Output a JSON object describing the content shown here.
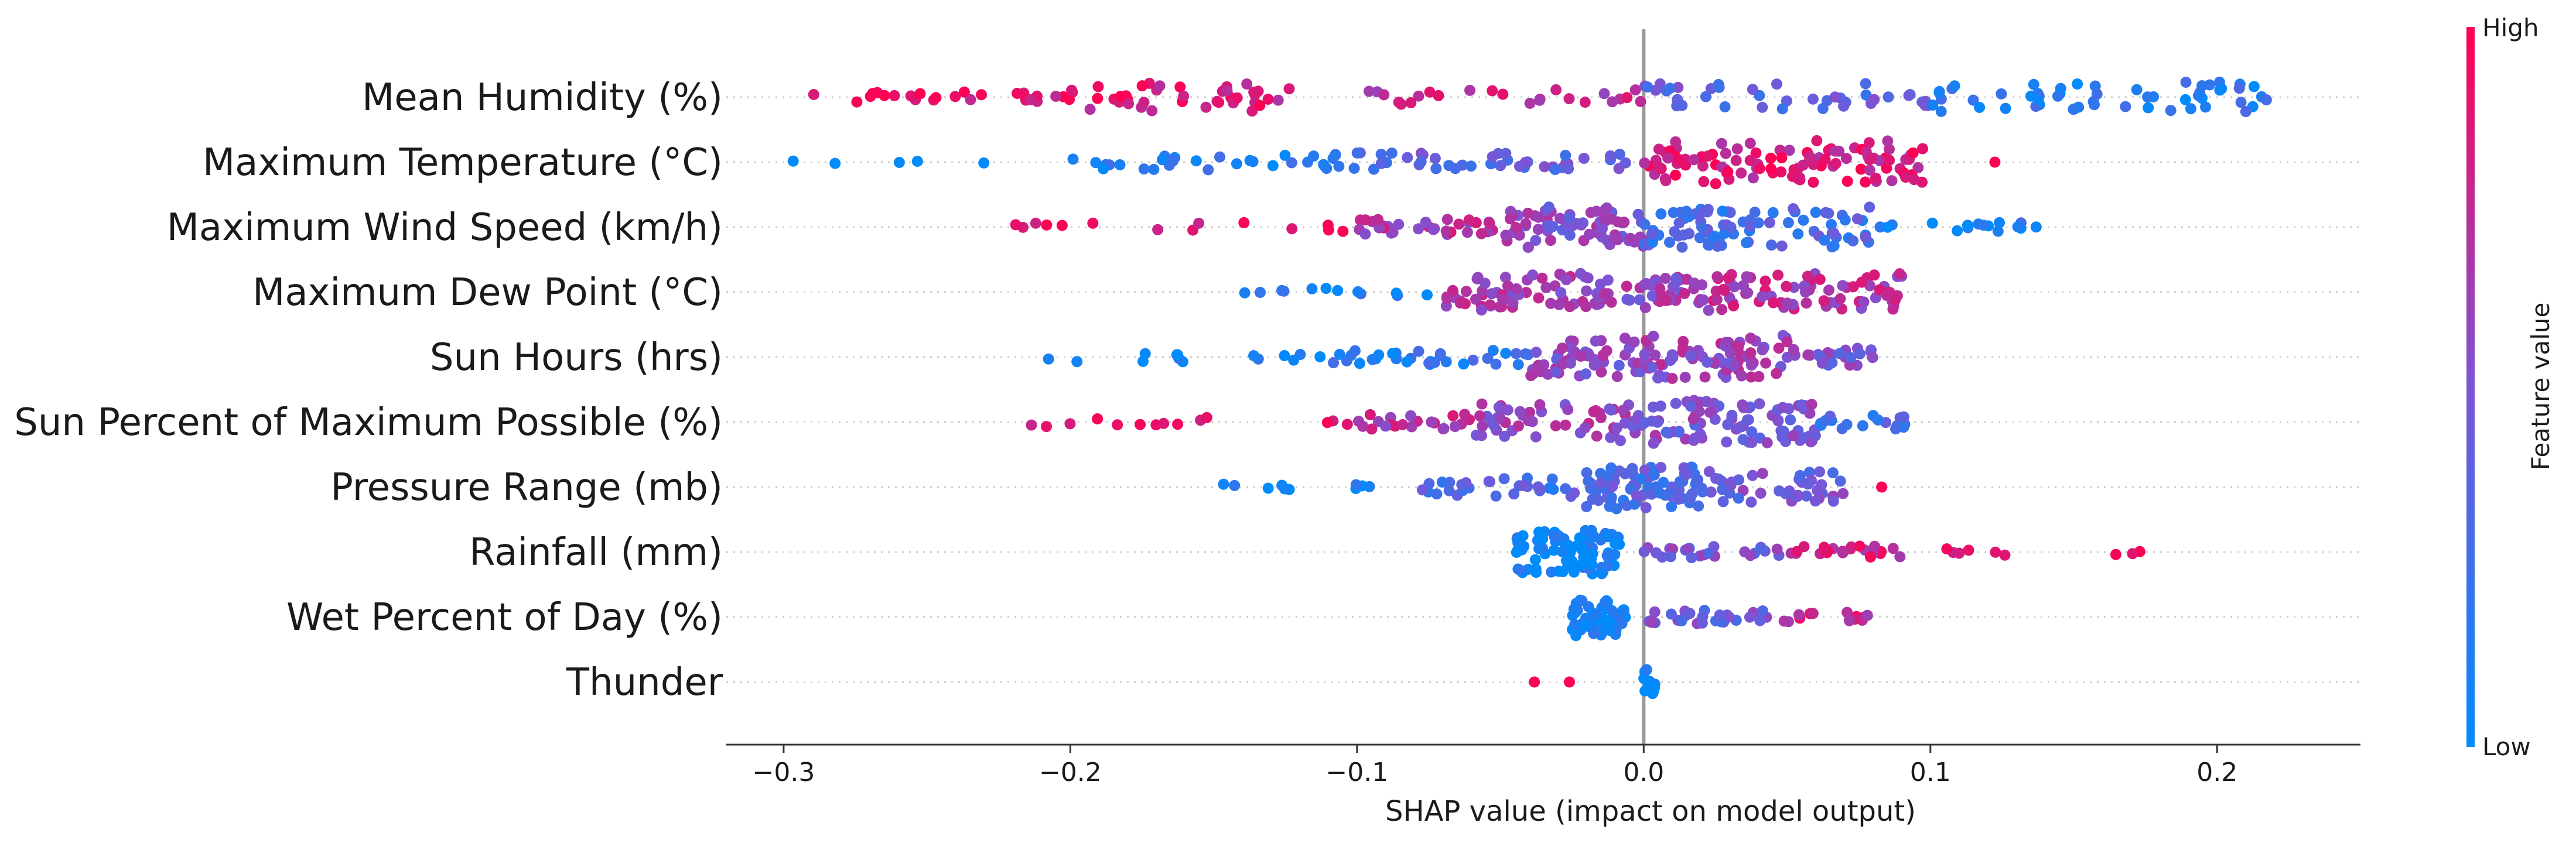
{
  "chart_data": {
    "type": "scatter",
    "subtype": "shap-beeswarm-summary",
    "xlabel": "SHAP value (impact on model output)",
    "xlim": [
      -0.32,
      0.25
    ],
    "xticks": [
      -0.3,
      -0.2,
      -0.1,
      0.0,
      0.1,
      0.2
    ],
    "xtick_labels": [
      "−0.3",
      "−0.2",
      "−0.1",
      "0.0",
      "0.1",
      "0.2"
    ],
    "colorbar": {
      "title": "Feature value",
      "high_label": "High",
      "low_label": "Low",
      "low_color": "#008bfb",
      "high_color": "#ff0052"
    },
    "features": [
      {
        "name": "Mean Humidity (%)",
        "clusters": [
          {
            "min": -0.29,
            "max": -0.2,
            "n": 26,
            "fv": 0.92,
            "spread": 0.8
          },
          {
            "min": -0.2,
            "max": -0.12,
            "n": 40,
            "fv": 0.85,
            "spread": 1.8
          },
          {
            "min": -0.12,
            "max": 0.0,
            "n": 24,
            "fv": 0.75,
            "spread": 1.0
          },
          {
            "min": 0.0,
            "max": 0.1,
            "n": 40,
            "fv": 0.38,
            "spread": 1.8
          },
          {
            "min": 0.1,
            "max": 0.22,
            "n": 55,
            "fv": 0.15,
            "spread": 2.0
          }
        ]
      },
      {
        "name": "Maximum Temperature (°C)",
        "clusters": [
          {
            "min": -0.31,
            "max": -0.23,
            "n": 5,
            "fv": 0.05,
            "spread": 0.2
          },
          {
            "min": -0.2,
            "max": -0.1,
            "n": 32,
            "fv": 0.1,
            "spread": 1.0
          },
          {
            "min": -0.1,
            "max": 0.0,
            "n": 42,
            "fv": 0.4,
            "spread": 1.2
          },
          {
            "min": 0.0,
            "max": 0.1,
            "n": 110,
            "fv": 0.85,
            "spread": 2.8
          },
          {
            "min": 0.12,
            "max": 0.125,
            "n": 1,
            "fv": 0.95,
            "spread": 0.0
          }
        ]
      },
      {
        "name": "Maximum Wind Speed (km/h)",
        "clusters": [
          {
            "min": -0.22,
            "max": -0.1,
            "n": 14,
            "fv": 0.93,
            "spread": 0.6
          },
          {
            "min": -0.1,
            "max": -0.05,
            "n": 32,
            "fv": 0.7,
            "spread": 1.0
          },
          {
            "min": -0.05,
            "max": 0.0,
            "n": 70,
            "fv": 0.55,
            "spread": 2.6
          },
          {
            "min": 0.0,
            "max": 0.08,
            "n": 85,
            "fv": 0.3,
            "spread": 2.6
          },
          {
            "min": 0.08,
            "max": 0.14,
            "n": 16,
            "fv": 0.1,
            "spread": 0.6
          }
        ]
      },
      {
        "name": "Maximum Dew Point (°C)",
        "clusters": [
          {
            "min": -0.14,
            "max": -0.07,
            "n": 12,
            "fv": 0.08,
            "spread": 0.5
          },
          {
            "min": -0.07,
            "max": -0.02,
            "n": 55,
            "fv": 0.65,
            "spread": 2.4
          },
          {
            "min": -0.02,
            "max": 0.02,
            "n": 50,
            "fv": 0.6,
            "spread": 2.0
          },
          {
            "min": 0.02,
            "max": 0.09,
            "n": 80,
            "fv": 0.7,
            "spread": 2.4
          }
        ]
      },
      {
        "name": "Sun Hours (hrs)",
        "clusters": [
          {
            "min": -0.215,
            "max": -0.11,
            "n": 14,
            "fv": 0.08,
            "spread": 0.6
          },
          {
            "min": -0.11,
            "max": -0.04,
            "n": 32,
            "fv": 0.15,
            "spread": 1.0
          },
          {
            "min": -0.04,
            "max": 0.0,
            "n": 50,
            "fv": 0.55,
            "spread": 2.6
          },
          {
            "min": 0.0,
            "max": 0.05,
            "n": 70,
            "fv": 0.6,
            "spread": 2.8
          },
          {
            "min": 0.05,
            "max": 0.08,
            "n": 24,
            "fv": 0.5,
            "spread": 1.4
          }
        ]
      },
      {
        "name": "Sun Percent of Maximum Possible (%)",
        "clusters": [
          {
            "min": -0.215,
            "max": -0.1,
            "n": 14,
            "fv": 0.92,
            "spread": 0.6
          },
          {
            "min": -0.1,
            "max": -0.06,
            "n": 22,
            "fv": 0.7,
            "spread": 1.0
          },
          {
            "min": -0.06,
            "max": 0.0,
            "n": 60,
            "fv": 0.6,
            "spread": 2.4
          },
          {
            "min": 0.0,
            "max": 0.06,
            "n": 85,
            "fv": 0.5,
            "spread": 2.8
          },
          {
            "min": 0.06,
            "max": 0.092,
            "n": 18,
            "fv": 0.25,
            "spread": 1.0
          }
        ]
      },
      {
        "name": "Pressure Range (mb)",
        "clusters": [
          {
            "min": -0.15,
            "max": -0.09,
            "n": 10,
            "fv": 0.05,
            "spread": 0.4
          },
          {
            "min": -0.08,
            "max": -0.02,
            "n": 30,
            "fv": 0.3,
            "spread": 1.2
          },
          {
            "min": -0.02,
            "max": 0.02,
            "n": 80,
            "fv": 0.35,
            "spread": 2.8
          },
          {
            "min": 0.02,
            "max": 0.07,
            "n": 45,
            "fv": 0.45,
            "spread": 2.0
          },
          {
            "min": 0.08,
            "max": 0.086,
            "n": 1,
            "fv": 0.95,
            "spread": 0.0
          }
        ]
      },
      {
        "name": "Rainfall (mm)",
        "clusters": [
          {
            "min": -0.045,
            "max": -0.008,
            "n": 90,
            "fv": 0.04,
            "spread": 2.8
          },
          {
            "min": 0.0,
            "max": 0.05,
            "n": 24,
            "fv": 0.5,
            "spread": 0.8
          },
          {
            "min": 0.05,
            "max": 0.09,
            "n": 22,
            "fv": 0.8,
            "spread": 0.8
          },
          {
            "min": 0.1,
            "max": 0.175,
            "n": 9,
            "fv": 0.95,
            "spread": 0.5
          }
        ]
      },
      {
        "name": "Wet Percent of Day (%)",
        "clusters": [
          {
            "min": -0.025,
            "max": -0.005,
            "n": 55,
            "fv": 0.04,
            "spread": 2.4
          },
          {
            "min": 0.0,
            "max": 0.045,
            "n": 30,
            "fv": 0.45,
            "spread": 0.9
          },
          {
            "min": 0.045,
            "max": 0.085,
            "n": 14,
            "fv": 0.8,
            "spread": 0.6
          }
        ]
      },
      {
        "name": "Thunder",
        "clusters": [
          {
            "min": -0.047,
            "max": -0.025,
            "n": 2,
            "fv": 1.0,
            "spread": 0.0
          },
          {
            "min": -0.001,
            "max": 0.004,
            "n": 10,
            "fv": 0.0,
            "spread": 1.6
          }
        ]
      }
    ]
  }
}
